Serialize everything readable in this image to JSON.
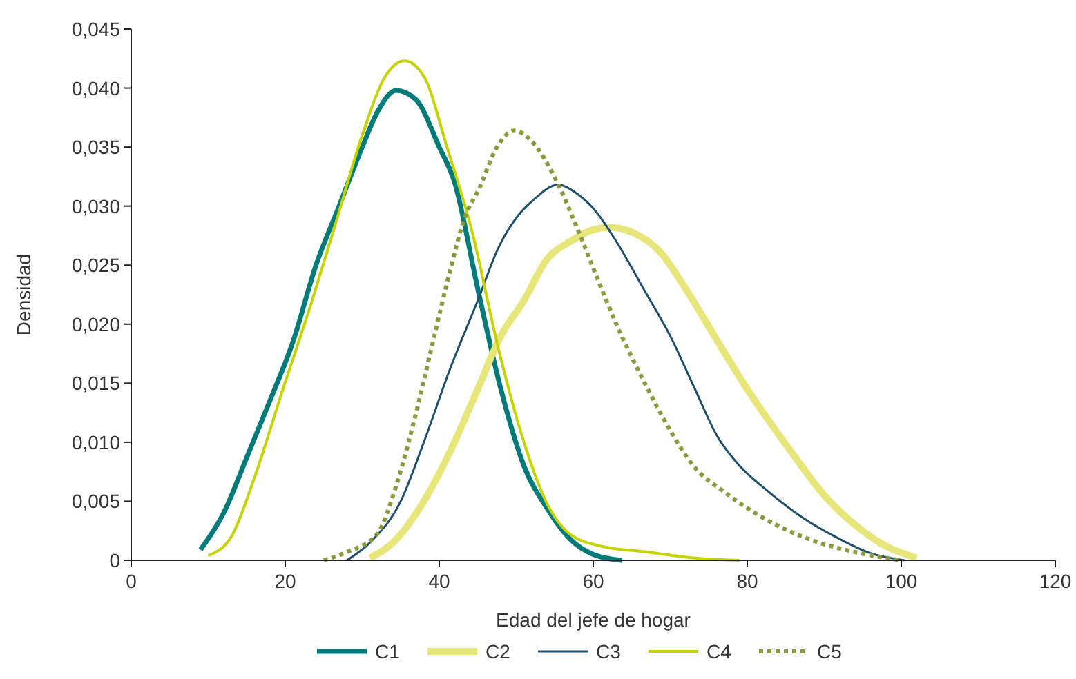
{
  "chart_data": {
    "type": "line",
    "xlabel": "Edad del jefe de hogar",
    "ylabel": "Densidad",
    "xlim": [
      0,
      120
    ],
    "xticks": [
      0,
      20,
      40,
      60,
      80,
      100,
      120
    ],
    "ylim": [
      0,
      0.045
    ],
    "yticks": [
      {
        "value": 0,
        "label": "0"
      },
      {
        "value": 0.005,
        "label": "0,005"
      },
      {
        "value": 0.01,
        "label": "0,010"
      },
      {
        "value": 0.015,
        "label": "0,015"
      },
      {
        "value": 0.02,
        "label": "0,020"
      },
      {
        "value": 0.025,
        "label": "0,025"
      },
      {
        "value": 0.03,
        "label": "0,030"
      },
      {
        "value": 0.035,
        "label": "0,035"
      },
      {
        "value": 0.04,
        "label": "0,040"
      },
      {
        "value": 0.045,
        "label": "0,045"
      }
    ],
    "grid": false,
    "legend": "bottom",
    "marker": "none",
    "series": [
      {
        "name": "C1",
        "color": "#007b7a",
        "line_style": "solid",
        "x": [
          9,
          12,
          15,
          18,
          21,
          24,
          27,
          30,
          32,
          34.4,
          37,
          40,
          42,
          45,
          48,
          51,
          54,
          57,
          60,
          63.7
        ],
        "values": [
          0.0009,
          0.004,
          0.0087,
          0.0135,
          0.0185,
          0.025,
          0.03,
          0.035,
          0.038,
          0.0398,
          0.039,
          0.035,
          0.032,
          0.023,
          0.0145,
          0.008,
          0.0044,
          0.0018,
          0.0005,
          0
        ]
      },
      {
        "name": "C2",
        "color": "#e6e67a",
        "line_style": "solid",
        "x": [
          31,
          34,
          38,
          41.4,
          45,
          48,
          51,
          54,
          57,
          60,
          62,
          65,
          68.7,
          72,
          76,
          80,
          85.7,
          90,
          94,
          98,
          102
        ],
        "values": [
          0.0002,
          0.0015,
          0.005,
          0.0092,
          0.0145,
          0.019,
          0.022,
          0.0255,
          0.027,
          0.028,
          0.0282,
          0.0278,
          0.0261,
          0.023,
          0.0187,
          0.0145,
          0.0092,
          0.0055,
          0.003,
          0.0012,
          0.0002
        ]
      },
      {
        "name": "C3",
        "color": "#1f4e6b",
        "line_style": "solid",
        "x": [
          28,
          31,
          35,
          38,
          41.4,
          45,
          47.7,
          50,
          52.2,
          55.4,
          58,
          60.4,
          63,
          66.7,
          70,
          73,
          76.2,
          79,
          82.6,
          87,
          92,
          96,
          100.4
        ],
        "values": [
          0,
          0.0015,
          0.005,
          0.01,
          0.0162,
          0.022,
          0.0265,
          0.029,
          0.0305,
          0.0318,
          0.031,
          0.0295,
          0.027,
          0.0228,
          0.019,
          0.0148,
          0.0104,
          0.008,
          0.0059,
          0.0037,
          0.0018,
          0.0006,
          0
        ]
      },
      {
        "name": "C4",
        "color": "#c3d400",
        "line_style": "solid",
        "x": [
          10,
          13,
          16,
          19.7,
          23,
          26.3,
          30,
          33,
          35.5,
          38,
          41,
          44.2,
          47.8,
          51,
          54,
          57,
          61,
          67,
          73,
          79
        ],
        "values": [
          0.0004,
          0.002,
          0.007,
          0.0145,
          0.021,
          0.028,
          0.036,
          0.041,
          0.0423,
          0.041,
          0.035,
          0.028,
          0.0176,
          0.01,
          0.0048,
          0.0022,
          0.0012,
          0.0007,
          0.0002,
          0
        ]
      },
      {
        "name": "C5",
        "color": "#8a9a3c",
        "line_style": "dotted",
        "x": [
          25,
          28,
          31.9,
          34.5,
          37,
          39,
          41.4,
          43.3,
          45.2,
          47.5,
          49.8,
          52,
          55.4,
          58,
          60.4,
          63,
          66.7,
          70,
          73,
          77,
          82.6,
          88,
          94,
          100
        ],
        "values": [
          0,
          0.0007,
          0.0022,
          0.0065,
          0.0125,
          0.018,
          0.0245,
          0.029,
          0.0315,
          0.035,
          0.0364,
          0.0355,
          0.0319,
          0.028,
          0.0241,
          0.02,
          0.015,
          0.011,
          0.008,
          0.0058,
          0.0034,
          0.0018,
          0.0007,
          0
        ]
      }
    ]
  }
}
